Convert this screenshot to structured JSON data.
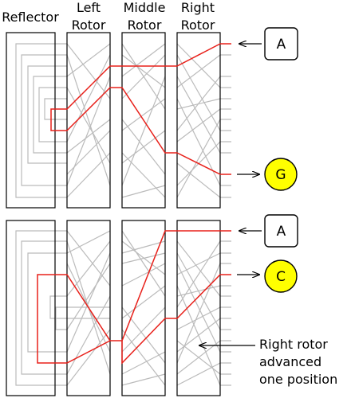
{
  "headers": {
    "reflector": "Reflector",
    "left_rotor": [
      "Left",
      "Rotor"
    ],
    "middle_rotor": [
      "Middle",
      "Rotor"
    ],
    "right_rotor": [
      "Right",
      "Rotor"
    ]
  },
  "top": {
    "input_letter": "A",
    "output_letter": "G"
  },
  "bottom": {
    "input_letter": "A",
    "output_letter": "C"
  },
  "annotation": [
    "Right rotor",
    "advanced",
    "one position"
  ],
  "colors": {
    "signal_path": "#e8201a",
    "wiring": "#bbbbbb",
    "output_lamp": "#ffff00",
    "outline": "#000000"
  }
}
